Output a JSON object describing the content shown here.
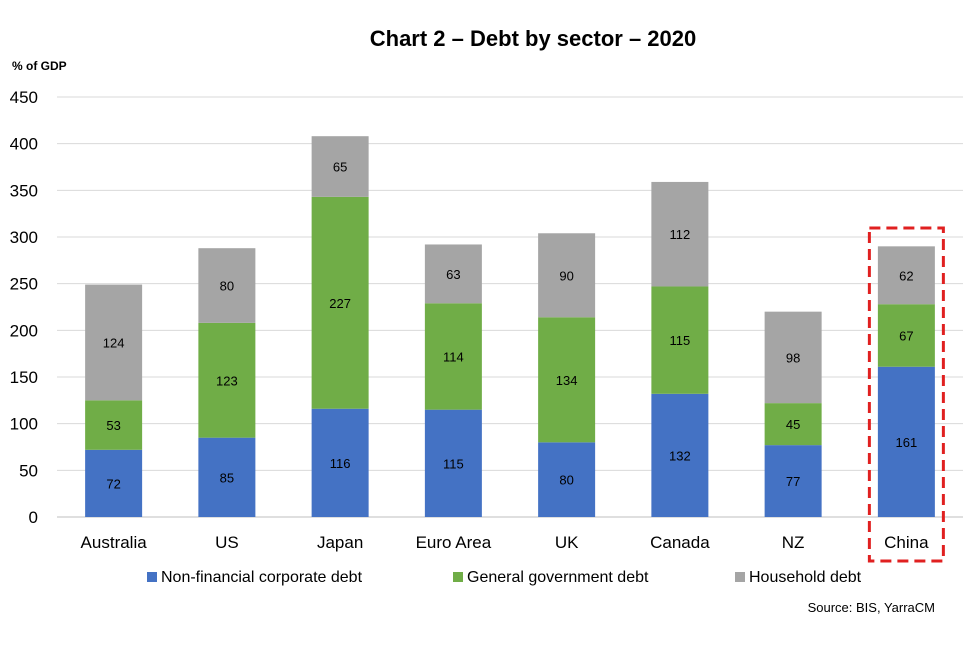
{
  "chart_data": {
    "type": "bar",
    "stacked": true,
    "title": "Chart 2 – Debt by sector – 2020",
    "ylabel": "% of GDP",
    "xlabel": "",
    "ylim": [
      0,
      450
    ],
    "yticks": [
      0,
      50,
      100,
      150,
      200,
      250,
      300,
      350,
      400,
      450
    ],
    "grid": true,
    "legend_position": "bottom",
    "categories": [
      "Australia",
      "US",
      "Japan",
      "Euro Area",
      "UK",
      "Canada",
      "NZ",
      "China"
    ],
    "series": [
      {
        "name": "Non-financial corporate debt",
        "color": "#4472C4",
        "values": [
          72,
          85,
          116,
          115,
          80,
          132,
          77,
          161
        ]
      },
      {
        "name": "General government debt",
        "color": "#70AD47",
        "values": [
          53,
          123,
          227,
          114,
          134,
          115,
          45,
          67
        ]
      },
      {
        "name": "Household debt",
        "color": "#A5A5A5",
        "values": [
          124,
          80,
          65,
          63,
          90,
          112,
          98,
          62
        ]
      }
    ],
    "highlight": {
      "category": "China",
      "style": "dashed-box",
      "color": "#E02020"
    },
    "source": "Source: BIS, YarraCM"
  }
}
